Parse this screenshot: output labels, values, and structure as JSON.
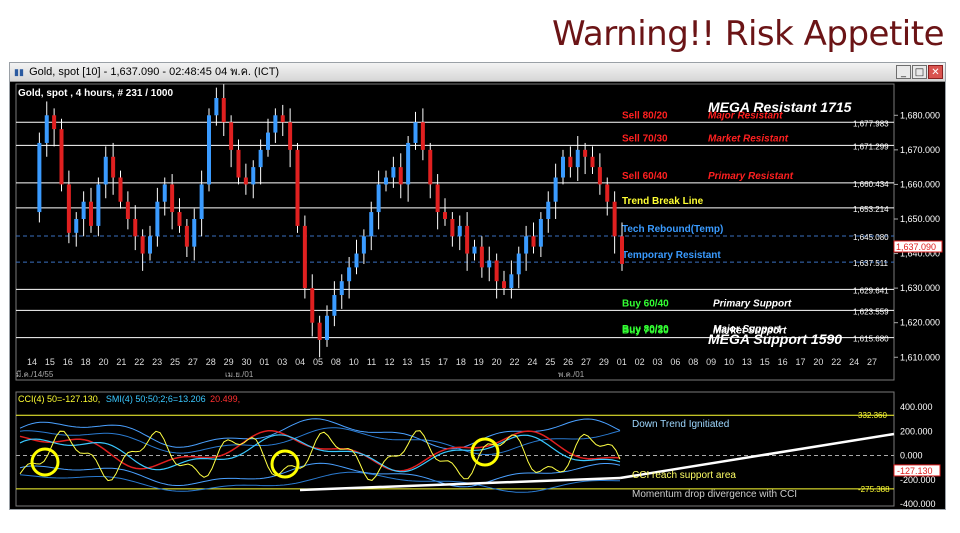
{
  "slide_title": "Warning!! Risk Appetite",
  "window": {
    "title": "Gold, spot [10] - 1,637.090 - 02:48:45  04 พ.ค. (ICT)",
    "buttons": [
      "_",
      "□",
      "✕"
    ]
  },
  "chart": {
    "header": "Gold, spot , 4 hours, # 231 / 1000",
    "mega_resistant": "MEGA Resistant 1715",
    "mega_support": "MEGA Support 1590",
    "current_price": "1,637.090",
    "price_axis": [
      "1,680.000",
      "1,670.000",
      "1,660.000",
      "1,650.000",
      "1,640.000",
      "1,630.000",
      "1,620.000",
      "1,610.000"
    ],
    "levels": [
      {
        "left": "Sell 80/20",
        "right": "Major Resistant",
        "value": "1,677.983",
        "color": "#ff2020"
      },
      {
        "left": "Sell 70/30",
        "right": "Market Resistant",
        "value": "1,671.299",
        "color": "#ff2020"
      },
      {
        "left": "Sell 60/40",
        "right": "Primary Resistant",
        "value": "1,660.434",
        "color": "#ff2020"
      },
      {
        "left": "Trend Break Line",
        "right": "",
        "value": "1,653.214",
        "color": "#ffff33"
      },
      {
        "left": "Tech Rebound(Temp)",
        "right": "",
        "value": "1,645.080",
        "color": "#3a9bff"
      },
      {
        "left": "Temporary Resistant",
        "right": "",
        "value": "1,637.511",
        "color": "#3a9bff"
      },
      {
        "left": "",
        "right": "",
        "value": "1,629.641",
        "color": "#ffffff"
      },
      {
        "left": "Buy 60/40",
        "right": "Primary Support",
        "value": "1,623.559",
        "color": "#33ff33"
      },
      {
        "left": "Buy 70/30",
        "right": "Market Support",
        "value": "1,615.680",
        "color": "#33ff33"
      },
      {
        "left": "Buy 80/20",
        "right": "Major Support",
        "value": "",
        "color": "#33ff33"
      }
    ],
    "date_labels": [
      "14",
      "15",
      "16",
      "18",
      "20",
      "21",
      "22",
      "23",
      "25",
      "27",
      "28",
      "29",
      "30",
      "01",
      "03",
      "04",
      "05",
      "08",
      "10",
      "11",
      "12",
      "13",
      "15",
      "17",
      "18",
      "19",
      "20",
      "22",
      "24",
      "25",
      "26",
      "27",
      "29",
      "01",
      "02",
      "03",
      "06",
      "08",
      "09",
      "10",
      "13",
      "15",
      "16",
      "17",
      "20",
      "22",
      "24",
      "27"
    ],
    "month_labels": [
      "มี.ค./14/55",
      "เม.ย./01",
      "พ.ค./01"
    ]
  },
  "indicator": {
    "header_cci": "CCI(4) 50=-127.130,",
    "header_smi": "SMI(4) 50;50;2;6=13.206",
    "header_smi2": "20.499,",
    "axis": [
      "400.000",
      "200.000",
      "0.000",
      "-200.000",
      "-400.000"
    ],
    "upper_level": "332.360",
    "lower_level": "-275.388",
    "current": "-127.130",
    "annotations": [
      "Down Trend Ignitiated",
      "CCI reach support area",
      "Momentum drop divergence with CCI"
    ]
  },
  "colors": {
    "bull": "#3a9bff",
    "bear": "#e02020",
    "title": "#6b1416",
    "highlight": "#ffff00"
  }
}
